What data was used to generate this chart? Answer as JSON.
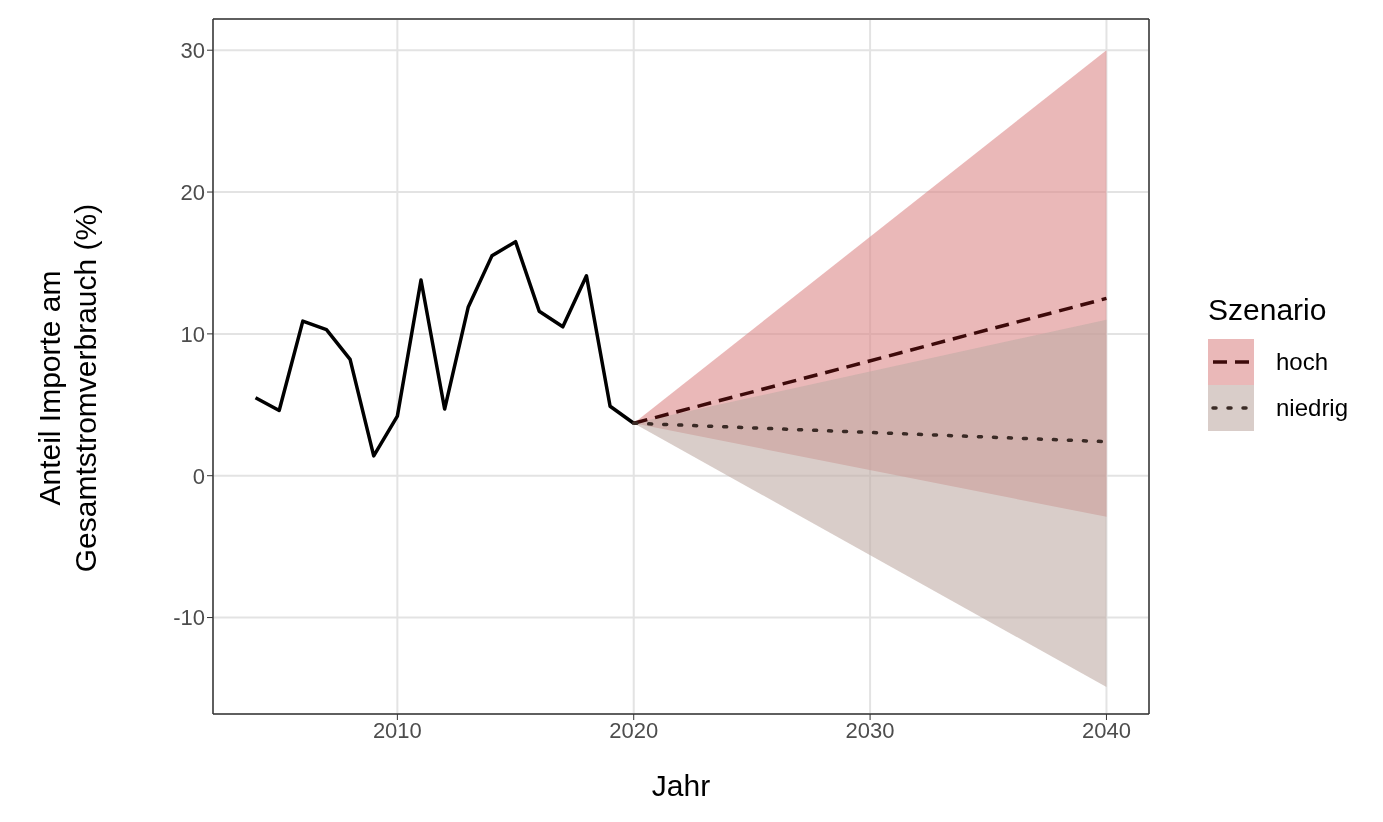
{
  "chart_data": {
    "type": "line",
    "xlabel": "Jahr",
    "ylabel": "Anteil Importe am Gesamtstromverbrauch (%)",
    "legend_title": "Szenario",
    "legend": "right",
    "grid": true,
    "xlim": [
      2002.2,
      2041.8
    ],
    "xticks": [
      2010,
      2020,
      2030,
      2040
    ],
    "ylim": [
      -16.8,
      32.2
    ],
    "yticks": [
      -10,
      0,
      10,
      20,
      30
    ],
    "series": [
      {
        "color": "#000000",
        "line_style": "solid",
        "x": [
          2004,
          2005,
          2006,
          2007,
          2008,
          2009,
          2010,
          2011,
          2012,
          2013,
          2014,
          2015,
          2016,
          2017,
          2018,
          2019,
          2020
        ],
        "values": [
          5.5,
          4.6,
          10.9,
          10.3,
          8.2,
          1.4,
          4.2,
          13.8,
          4.7,
          11.9,
          15.5,
          16.5,
          11.6,
          10.5,
          14.1,
          4.9,
          3.7
        ]
      },
      {
        "name": "hoch",
        "color": "#3d0a0a",
        "line_style": "dashed",
        "x": [
          2020,
          2040
        ],
        "values": [
          3.7,
          12.5
        ],
        "lower": [
          3.7,
          -2.9
        ],
        "upper": [
          3.7,
          30
        ]
      },
      {
        "name": "niedrig",
        "color": "#3a2a25",
        "line_style": "dotted",
        "x": [
          2020,
          2040
        ],
        "values": [
          3.7,
          2.4
        ],
        "lower": [
          3.7,
          -14.9
        ],
        "upper": [
          3.7,
          11
        ]
      }
    ]
  }
}
